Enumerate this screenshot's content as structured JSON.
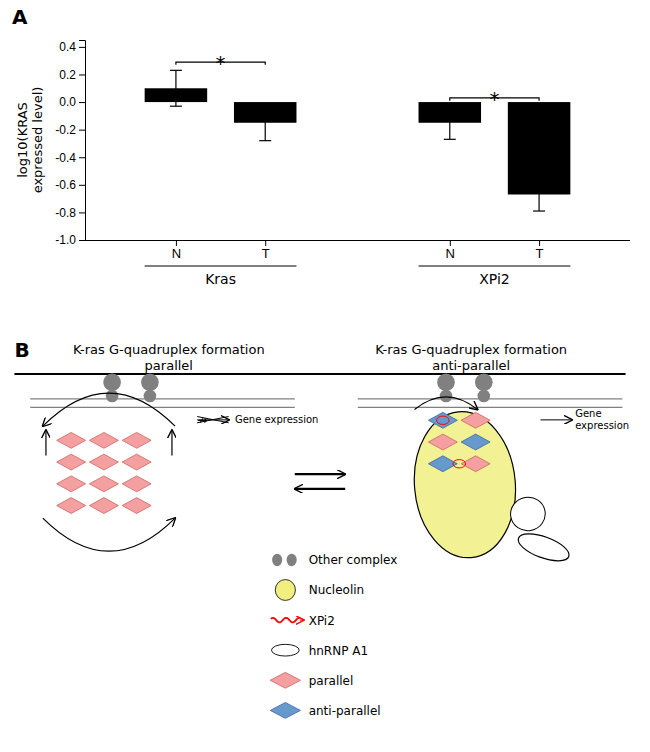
{
  "chart_data": [
    {
      "type": "bar",
      "panel_label": "A",
      "categories": [
        "N",
        "T",
        "N",
        "T"
      ],
      "group_labels": [
        "Kras",
        "XPi2"
      ],
      "values": [
        0.1,
        -0.15,
        -0.15,
        -0.67
      ],
      "errors": [
        0.13,
        0.13,
        0.12,
        0.12
      ],
      "color": "#000000",
      "ylabel": "log10(KRAS\nexpressed level)",
      "ylim": [
        -1.0,
        0.45
      ],
      "yticks": [
        {
          "value": -1.0,
          "label": "-1.0"
        },
        -0.8,
        -0.6,
        -0.4,
        -0.2,
        {
          "value": 0.0,
          "label": "0.0"
        },
        0.2,
        0.4
      ],
      "annotations": [
        "*",
        "*"
      ]
    },
    {
      "type": "diagram",
      "panel_label": "B",
      "titles": [
        "K-ras G-quadruplex formation\nparallel",
        "K-ras G-quadruplex formation\nanti-parallel"
      ],
      "annotations": [
        "↛",
        "Gene expression",
        "Gene\nexpression"
      ],
      "series": [
        {
          "name": "Other complex",
          "color": "#808080"
        },
        {
          "name": "Nucleolin",
          "color": "#f0ef80"
        },
        {
          "name": "XPi2",
          "color": "#ff0000"
        },
        {
          "name": "hnRNP A1",
          "color": "#ffffff"
        },
        {
          "name": "parallel",
          "color": "#f4a0a0"
        },
        {
          "name": "anti-parallel",
          "color": "#6699cc"
        }
      ]
    }
  ]
}
